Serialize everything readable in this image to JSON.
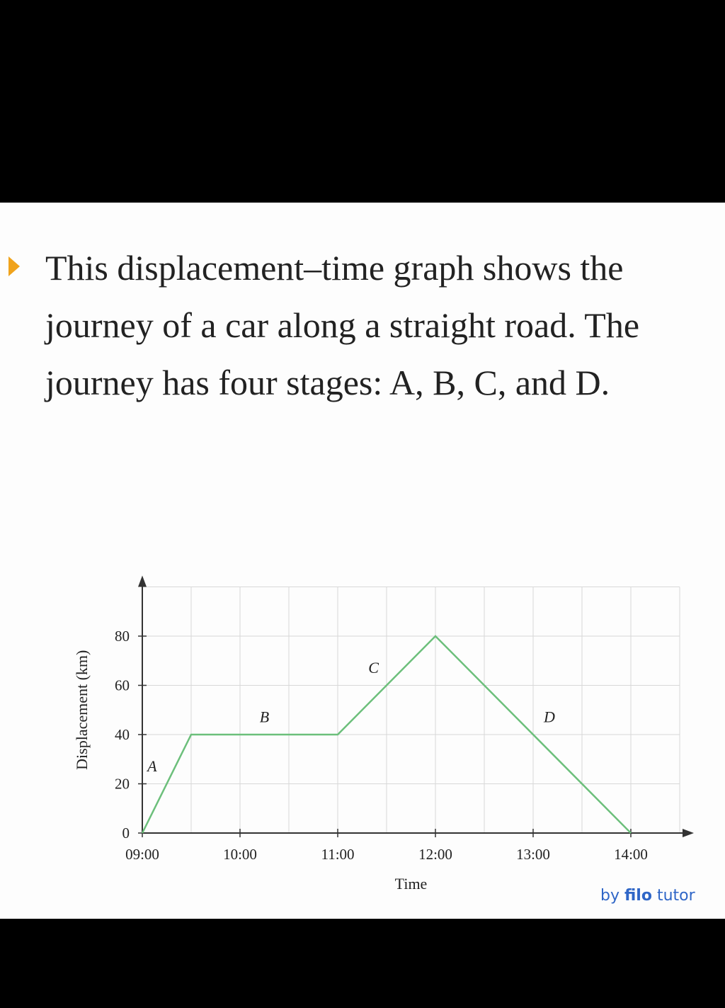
{
  "text": {
    "paragraph": "This displacement–time graph shows the journey of a car along a straight road. The journey has four stages: A, B, C, and D."
  },
  "brand": {
    "prefix": "by",
    "name": "filo",
    "suffix": "tutor"
  },
  "colors": {
    "line": "#6cbf7b",
    "bullet": "#f0a31c",
    "brand": "#2f66c7",
    "grid": "#d8d8d8"
  },
  "chart_data": {
    "type": "line",
    "title": "",
    "xlabel": "Time",
    "ylabel": "Displacement (km)",
    "x_ticks": [
      "09:00",
      "10:00",
      "11:00",
      "12:00",
      "13:00",
      "14:00"
    ],
    "y_ticks": [
      0,
      20,
      40,
      60,
      80
    ],
    "xlim": [
      "09:00",
      "14:30"
    ],
    "ylim": [
      0,
      100
    ],
    "grid": true,
    "points": [
      {
        "x": "09:00",
        "y": 0
      },
      {
        "x": "09:30",
        "y": 40
      },
      {
        "x": "11:00",
        "y": 40
      },
      {
        "x": "12:00",
        "y": 80
      },
      {
        "x": "14:00",
        "y": 0
      }
    ],
    "annotations": [
      {
        "text": "A",
        "x": "09:06",
        "y": 25
      },
      {
        "text": "B",
        "x": "10:15",
        "y": 45
      },
      {
        "text": "C",
        "x": "11:22",
        "y": 65
      },
      {
        "text": "D",
        "x": "13:10",
        "y": 45
      }
    ]
  }
}
